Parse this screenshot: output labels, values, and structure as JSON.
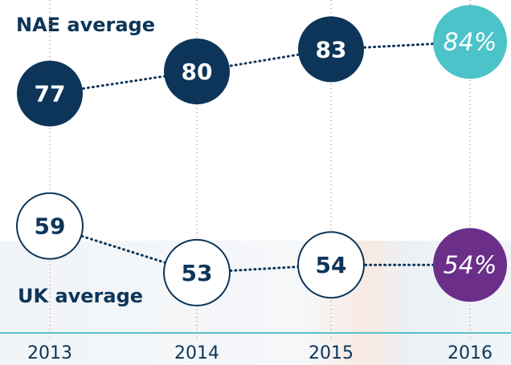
{
  "chart_data": {
    "type": "dot-line",
    "categories": [
      "2013",
      "2014",
      "2015",
      "2016"
    ],
    "series": [
      {
        "name": "NAE average",
        "color": "#0d3559",
        "colors": [
          "#0d3559",
          "#0d3559",
          "#0d3559",
          "#4bc3c9"
        ],
        "values": [
          77,
          80,
          83,
          84
        ],
        "value_labels": [
          "77",
          "80",
          "83",
          "84%"
        ]
      },
      {
        "name": "UK average",
        "color": "#0d3559",
        "colors": [
          "#ffffff",
          "#ffffff",
          "#ffffff",
          "#6b2f8a"
        ],
        "values": [
          59,
          53,
          54,
          54
        ],
        "value_labels": [
          "59",
          "53",
          "54",
          "54%"
        ]
      }
    ]
  }
}
